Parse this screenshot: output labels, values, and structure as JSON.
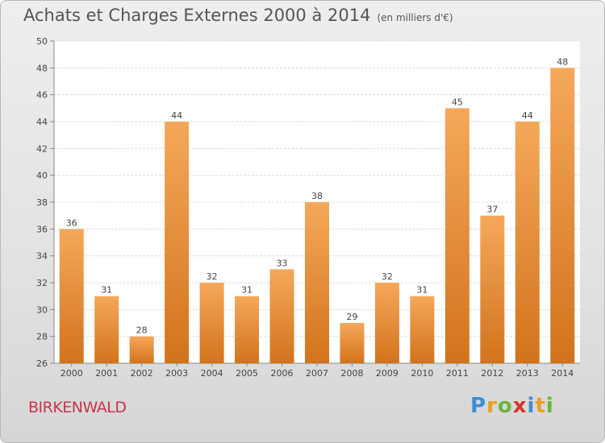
{
  "header": {
    "title": "Achats et Charges Externes 2000 à 2014",
    "subtitle": "(en milliers d'€)"
  },
  "footer": {
    "city": "BIRKENWALD",
    "logo_letters": [
      "P",
      "r",
      "o",
      "x",
      "i",
      "t",
      "i"
    ]
  },
  "colors": {
    "bar_top": "#f5a85a",
    "bar_bottom": "#d2731c",
    "city": "#c8344a",
    "logo": [
      "#3a8fd6",
      "#e8a020",
      "#6db33f",
      "#d8342a",
      "#3a8fd6",
      "#e8a020",
      "#6db33f"
    ]
  },
  "chart_data": {
    "type": "bar",
    "title": "Achats et Charges Externes 2000 à 2014",
    "subtitle": "(en milliers d'€)",
    "categories": [
      "2000",
      "2001",
      "2002",
      "2003",
      "2004",
      "2005",
      "2006",
      "2007",
      "2008",
      "2009",
      "2010",
      "2011",
      "2012",
      "2013",
      "2014"
    ],
    "values": [
      36,
      31,
      28,
      44,
      32,
      31,
      33,
      38,
      29,
      32,
      31,
      45,
      37,
      44,
      48
    ],
    "ylim": [
      26,
      50
    ],
    "yticks": [
      26,
      28,
      30,
      32,
      34,
      36,
      38,
      40,
      42,
      44,
      46,
      48,
      50
    ],
    "grid": true,
    "xlabel": "",
    "ylabel": ""
  }
}
